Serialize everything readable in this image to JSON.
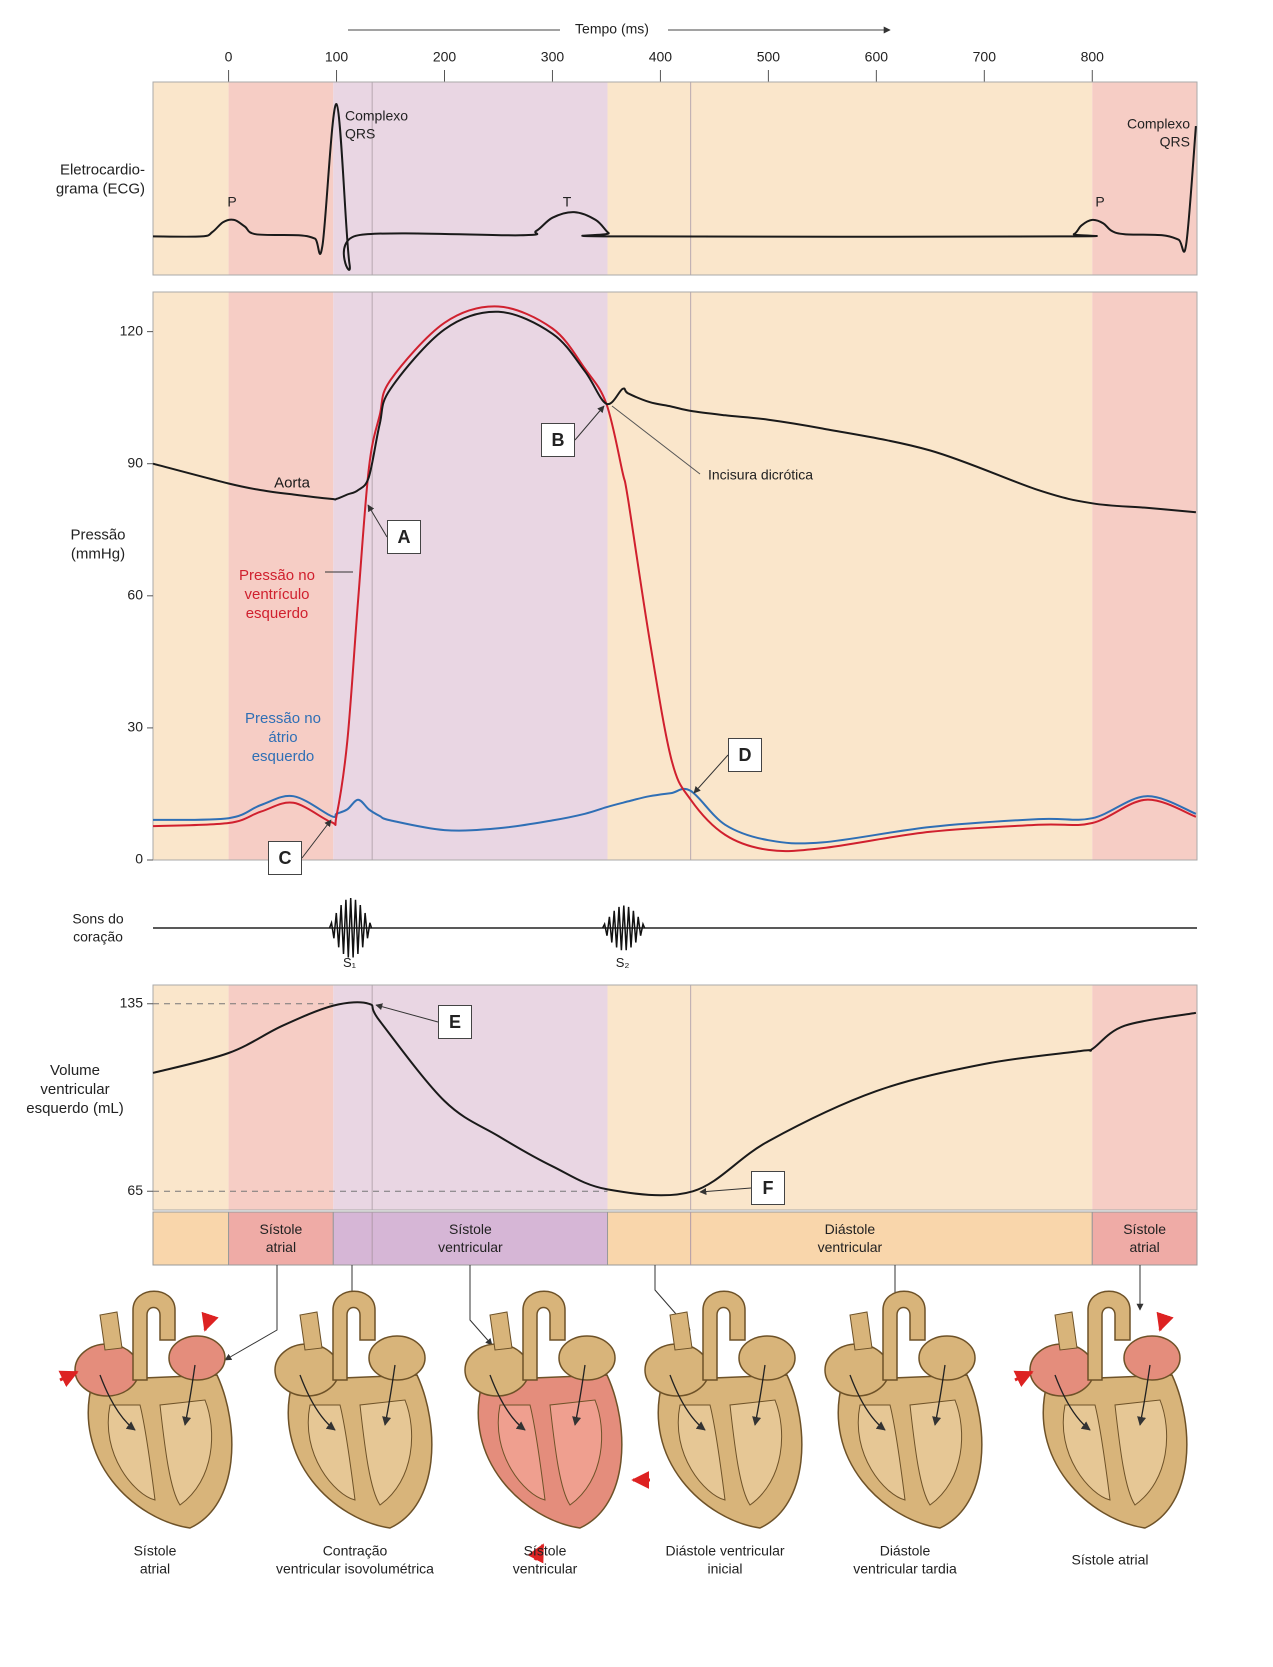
{
  "chart_data": [
    {
      "type": "line",
      "ylabel": "Eletrocardio-\ngrama (ECG)",
      "xlabel": "Tempo (ms)",
      "smooth": true,
      "xlim": [
        -70,
        897
      ],
      "xticks": [
        0,
        100,
        200,
        300,
        400,
        500,
        600,
        700,
        800
      ],
      "ylim": [
        -0.35,
        1.4
      ],
      "x": [
        -70,
        -25,
        -15,
        -5,
        5,
        15,
        25,
        65,
        80,
        87,
        100,
        112,
        120,
        270,
        285,
        300,
        320,
        340,
        352,
        360,
        770,
        783,
        790,
        800,
        810,
        818,
        830,
        865,
        880,
        887,
        896
      ],
      "series": [
        {
          "color": "#1a1a1a",
          "values": [
            0,
            0,
            0.04,
            0.13,
            0.15,
            0.09,
            0.02,
            0.01,
            -0.02,
            -0.08,
            1.2,
            -0.25,
            0.01,
            0.01,
            0.05,
            0.17,
            0.22,
            0.15,
            0.03,
            0,
            0,
            0.02,
            0.1,
            0.15,
            0.12,
            0.05,
            0.02,
            0.01,
            -0.03,
            -0.07,
            1.0
          ]
        }
      ],
      "annotations": [
        "P",
        "Complexo\nQRS",
        "T",
        "P",
        "Complexo\nQRS"
      ]
    },
    {
      "type": "line",
      "ylabel": "Pressão\n(mmHg)",
      "smooth": true,
      "xlim": [
        -70,
        897
      ],
      "ylim": [
        0,
        129
      ],
      "yticks": [
        0,
        30,
        60,
        90,
        120
      ],
      "x": [
        -70,
        0,
        30,
        60,
        95,
        100,
        110,
        120,
        130,
        140,
        150,
        200,
        250,
        300,
        330,
        350,
        365,
        370,
        390,
        410,
        428,
        460,
        500,
        550,
        650,
        750,
        800,
        850,
        896
      ],
      "series": [
        {
          "name": "Aorta",
          "color": "#1a1a1a",
          "values": [
            90,
            85.5,
            84,
            83,
            82,
            82,
            83,
            84,
            87,
            99,
            107,
            120.5,
            124.5,
            119.5,
            111,
            103.6,
            107,
            106,
            104,
            103,
            102,
            101,
            100,
            98,
            93,
            84,
            81,
            80,
            79
          ]
        },
        {
          "name": "Pressão no\nventrículo\nesquerdo",
          "color": "#d0202e",
          "values": [
            7.7,
            8.4,
            11,
            13,
            8.6,
            10,
            27,
            59,
            89,
            101,
            109,
            122,
            125.7,
            120.7,
            111.6,
            103.6,
            88,
            82,
            50,
            23,
            13.7,
            5.7,
            2.3,
            2.7,
            6.4,
            8,
            8.4,
            13.7,
            9.8
          ]
        },
        {
          "name": "Pressão no\nátrio\nesquerdo",
          "color": "#2f6fb5",
          "values": [
            9.1,
            9.5,
            12.5,
            14.5,
            10,
            10.5,
            11.5,
            13.7,
            11.5,
            10,
            9,
            6.8,
            7.2,
            9,
            10.5,
            12,
            13,
            13.3,
            14.5,
            15.2,
            15.7,
            8,
            4.5,
            4,
            7.5,
            9.3,
            9.5,
            14.5,
            10.5
          ]
        }
      ],
      "annotations": [
        "A",
        "B",
        "C",
        "D",
        "Incisura dicrótica"
      ]
    },
    {
      "type": "heart_sounds",
      "ylabel": "Sons do\ncoração",
      "xlim": [
        -70,
        897
      ],
      "x": [
        112,
        365
      ],
      "labels": [
        "S₁",
        "S₂"
      ]
    },
    {
      "type": "line",
      "ylabel": "Volume\nventricular\nesquerdo (mL)",
      "smooth": true,
      "xlim": [
        -70,
        897
      ],
      "ylim": [
        58,
        142
      ],
      "yticks": [
        65,
        135
      ],
      "x": [
        -70,
        0,
        50,
        97,
        130,
        140,
        200,
        250,
        300,
        351,
        430,
        500,
        600,
        700,
        790,
        800,
        830,
        896
      ],
      "series": [
        {
          "color": "#1a1a1a",
          "values": [
            109.2,
            116.6,
            126.8,
            134.3,
            135,
            128.6,
            98.7,
            85.6,
            74.3,
            65.7,
            65,
            83.7,
            102.4,
            112.5,
            117.4,
            118.1,
            126.8,
            131.6
          ]
        }
      ],
      "annotations": [
        "E",
        "F"
      ]
    }
  ],
  "phases": [
    {
      "start": -70,
      "end": 0,
      "color": "#fae6cb",
      "bar_color": "#f9d6ab",
      "label": null
    },
    {
      "start": 0,
      "end": 97,
      "color": "#f6cdc5",
      "bar_color": "#efaba6",
      "label": "Sístole\natrial"
    },
    {
      "start": 97,
      "end": 351,
      "color": "#e9d6e3",
      "bar_color": "#d6b6d6",
      "label": "Sístole\nventricular"
    },
    {
      "start": 351,
      "end": 800,
      "color": "#fae6cb",
      "bar_color": "#f9d6ab",
      "label": "Diástole\nventricular"
    },
    {
      "start": 800,
      "end": 897,
      "color": "#f6cdc5",
      "bar_color": "#efaba6",
      "label": "Sístole\natrial"
    }
  ],
  "event_lines": [
    133,
    428
  ],
  "hearts": [
    "Sístole\natrial",
    "Contração\nventricular isovolumétrica",
    "Sístole\nventricular",
    "Diástole ventricular\ninicial",
    "Diástole\nventricular tardia",
    "Sístole atrial"
  ]
}
